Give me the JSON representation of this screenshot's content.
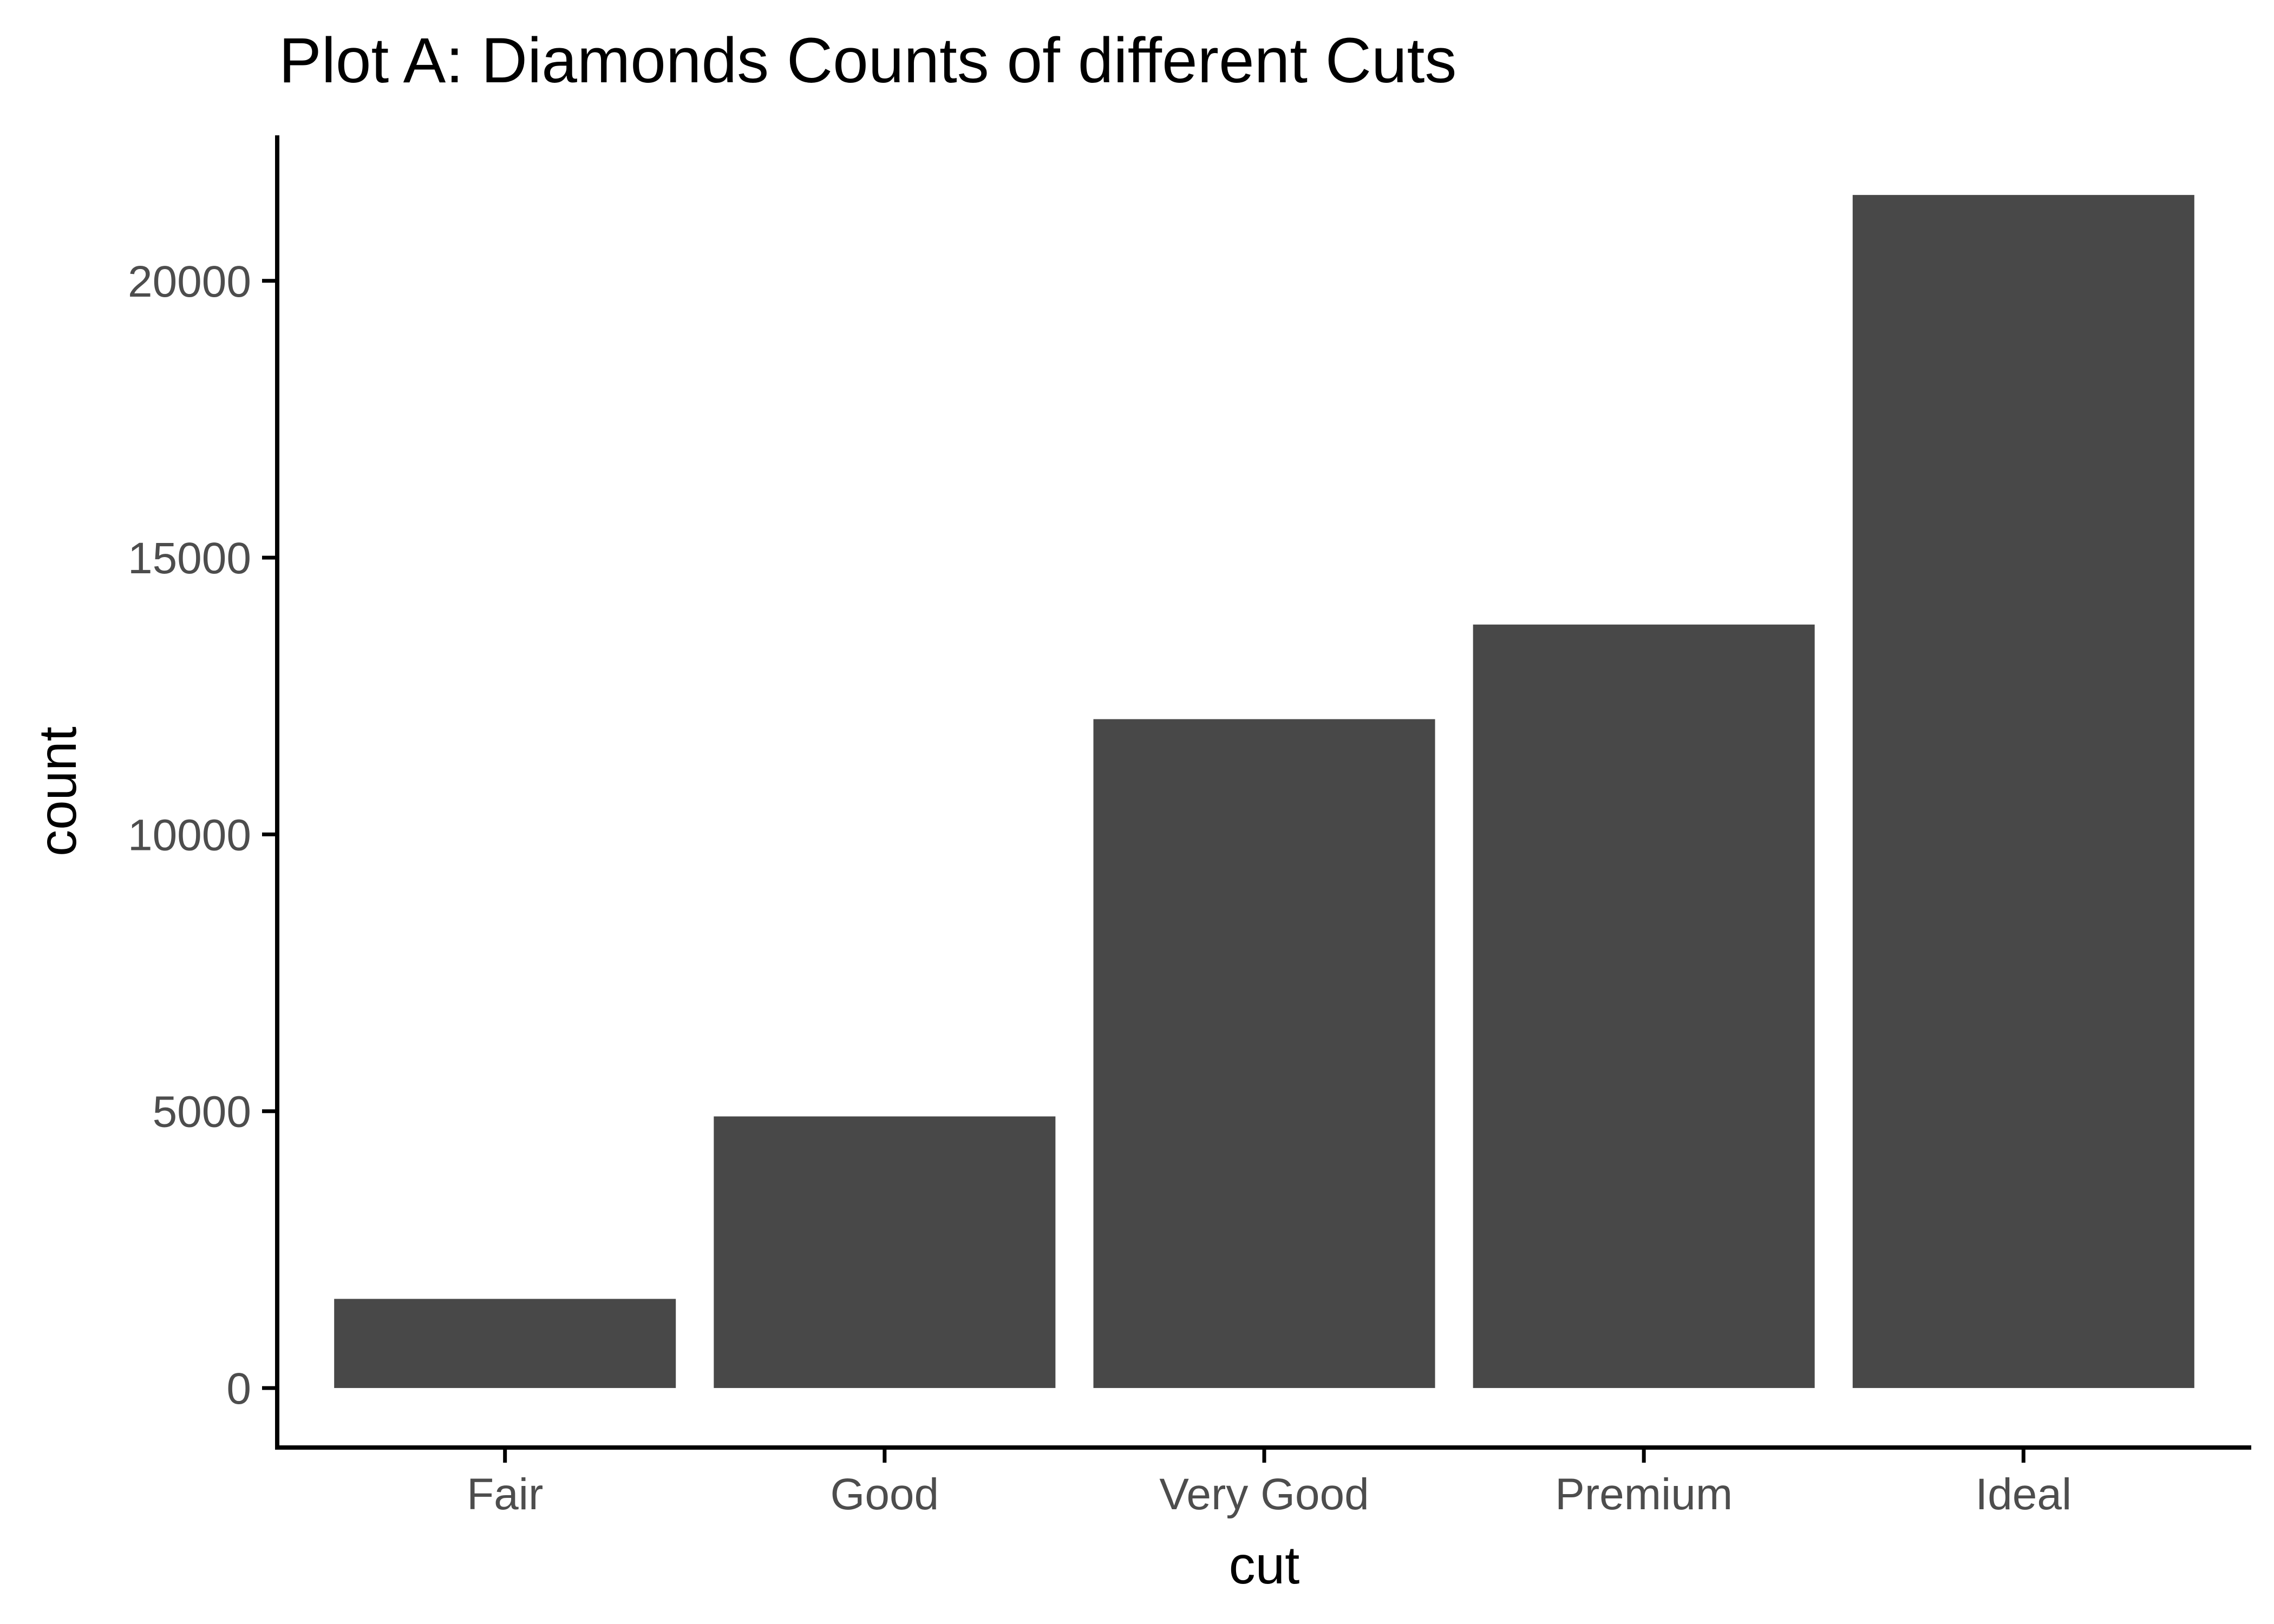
{
  "chart_data": {
    "type": "bar",
    "title": "Plot A: Diamonds Counts of different Cuts",
    "xlabel": "cut",
    "ylabel": "count",
    "categories": [
      "Fair",
      "Good",
      "Very Good",
      "Premium",
      "Ideal"
    ],
    "values": [
      1610,
      4906,
      12082,
      13791,
      21551
    ],
    "yticks": [
      0,
      5000,
      10000,
      15000,
      20000
    ],
    "ylim": [
      -1075,
      22628
    ],
    "grid": false,
    "legend": "none",
    "colors": {
      "bar": "#484848",
      "axis": "#000000",
      "tick_text": "#4d4d4d",
      "background": "#ffffff"
    }
  }
}
